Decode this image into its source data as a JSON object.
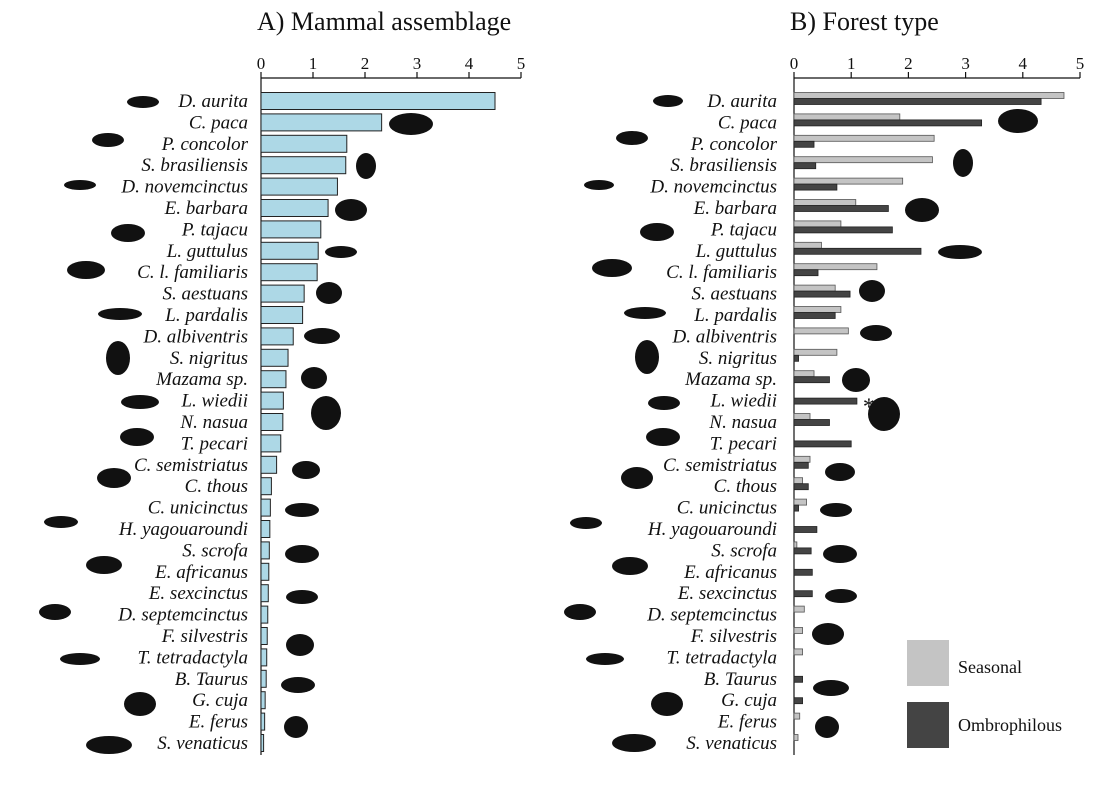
{
  "panels": [
    {
      "title": "A) Mammal assemblage"
    },
    {
      "title": "B) Forest type"
    }
  ],
  "legend": {
    "seasonal_label": "Seasonal",
    "ombrophilous_label": "Ombrophilous",
    "seasonal_color": "#c4c4c4",
    "ombrophilous_color": "#444444"
  },
  "colors": {
    "panel_a_bar": "#add8e6",
    "bar_stroke": "#222222"
  },
  "significance_marker": "*",
  "chart_data": [
    {
      "type": "bar",
      "orientation": "horizontal",
      "title": "A) Mammal assemblage",
      "xlim": [
        0,
        5
      ],
      "xticks": [
        0,
        1,
        2,
        3,
        4,
        5
      ],
      "categories": [
        "D. aurita",
        "C. paca",
        "P. concolor",
        "S. brasiliensis",
        "D. novemcinctus",
        "E. barbara",
        "P. tajacu",
        "L. guttulus",
        "C. l. familiaris",
        "S. aestuans",
        "L. pardalis",
        "D. albiventris",
        "S. nigritus",
        "Mazama sp.",
        "L. wiedii",
        "N. nasua",
        "T. pecari",
        "C. semistriatus",
        "C. thous",
        "C. unicinctus",
        "H. yagouaroundi",
        "S. scrofa",
        "E. africanus",
        "E. sexcinctus",
        "D. septemcinctus",
        "F. silvestris",
        "T. tetradactyla",
        "B. Taurus",
        "G. cuja",
        "E. ferus",
        "S. venaticus"
      ],
      "values": [
        4.5,
        2.32,
        1.65,
        1.63,
        1.47,
        1.29,
        1.15,
        1.1,
        1.08,
        0.83,
        0.8,
        0.62,
        0.52,
        0.48,
        0.43,
        0.42,
        0.38,
        0.3,
        0.2,
        0.18,
        0.17,
        0.16,
        0.15,
        0.14,
        0.13,
        0.12,
        0.11,
        0.1,
        0.08,
        0.07,
        0.05
      ]
    },
    {
      "type": "bar",
      "orientation": "horizontal",
      "title": "B) Forest type",
      "xlim": [
        0,
        5
      ],
      "xticks": [
        0,
        1,
        2,
        3,
        4,
        5
      ],
      "categories": [
        "D. aurita",
        "C. paca",
        "P. concolor",
        "S. brasiliensis",
        "D. novemcinctus",
        "E. barbara",
        "P. tajacu",
        "L. guttulus",
        "C. l. familiaris",
        "S. aestuans",
        "L. pardalis",
        "D. albiventris",
        "S. nigritus",
        "Mazama sp.",
        "L. wiedii",
        "N. nasua",
        "T. pecari",
        "C. semistriatus",
        "C. thous",
        "C. unicinctus",
        "H. yagouaroundi",
        "S. scrofa",
        "E. africanus",
        "E. sexcinctus",
        "D. septemcinctus",
        "F. silvestris",
        "T. tetradactyla",
        "B. Taurus",
        "G. cuja",
        "E. ferus",
        "S. venaticus"
      ],
      "series": [
        {
          "name": "Seasonal",
          "values": [
            4.72,
            1.85,
            2.45,
            2.42,
            1.9,
            1.08,
            0.82,
            0.48,
            1.45,
            0.72,
            0.82,
            0.95,
            0.75,
            0.35,
            0.0,
            0.28,
            0.0,
            0.28,
            0.15,
            0.22,
            0.0,
            0.05,
            0.0,
            0.0,
            0.18,
            0.15,
            0.15,
            0.0,
            0.0,
            0.1,
            0.07
          ]
        },
        {
          "name": "Ombrophilous",
          "values": [
            4.32,
            3.28,
            0.35,
            0.38,
            0.75,
            1.65,
            1.72,
            2.22,
            0.42,
            0.98,
            0.72,
            0.0,
            0.08,
            0.62,
            1.1,
            0.62,
            1.0,
            0.25,
            0.25,
            0.08,
            0.4,
            0.3,
            0.32,
            0.32,
            0.0,
            0.0,
            0.0,
            0.15,
            0.15,
            0.0,
            0.0
          ]
        }
      ],
      "annotations": [
        {
          "category": "L. wiedii",
          "text": "*"
        }
      ]
    }
  ]
}
